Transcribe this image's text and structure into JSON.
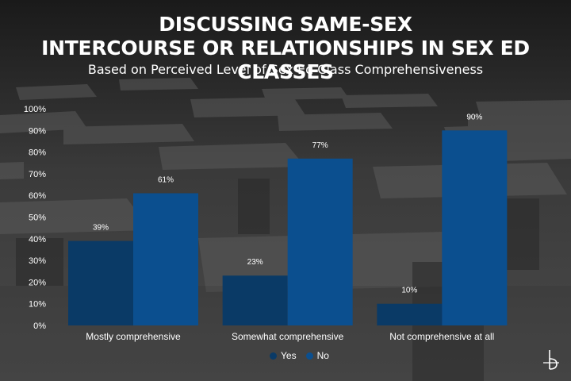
{
  "header": {
    "title_line1": "DISCUSSING SAME-SEX",
    "title_line2": "INTERCOURSE OR RELATIONSHIPS IN SEX ED CLASSES",
    "subtitle": "Based on Perceived Level of Sex Ed Class Comprehensiveness"
  },
  "colors": {
    "yes": "#0a3a66",
    "no": "#0b4f8f",
    "text": "#ffffff"
  },
  "logo": {
    "icon": "brand-logo-icon"
  },
  "chart_data": {
    "type": "bar",
    "title": "DISCUSSING SAME-SEX INTERCOURSE OR RELATIONSHIPS IN SEX ED CLASSES",
    "subtitle": "Based on Perceived Level of Sex Ed Class Comprehensiveness",
    "categories": [
      "Mostly comprehensive",
      "Somewhat comprehensive",
      "Not comprehensive at all"
    ],
    "series": [
      {
        "name": "Yes",
        "values": [
          39,
          23,
          10
        ],
        "labels": [
          "39%",
          "23%",
          "10%"
        ]
      },
      {
        "name": "No",
        "values": [
          61,
          77,
          90
        ],
        "labels": [
          "61%",
          "77%",
          "90%"
        ]
      }
    ],
    "ylim": [
      0,
      100
    ],
    "yticks": [
      "0%",
      "10%",
      "20%",
      "30%",
      "40%",
      "50%",
      "60%",
      "70%",
      "80%",
      "90%",
      "100%"
    ],
    "xlabel": "",
    "ylabel": "",
    "grid": false,
    "legend": {
      "position": "bottom",
      "items": [
        "Yes",
        "No"
      ]
    }
  }
}
